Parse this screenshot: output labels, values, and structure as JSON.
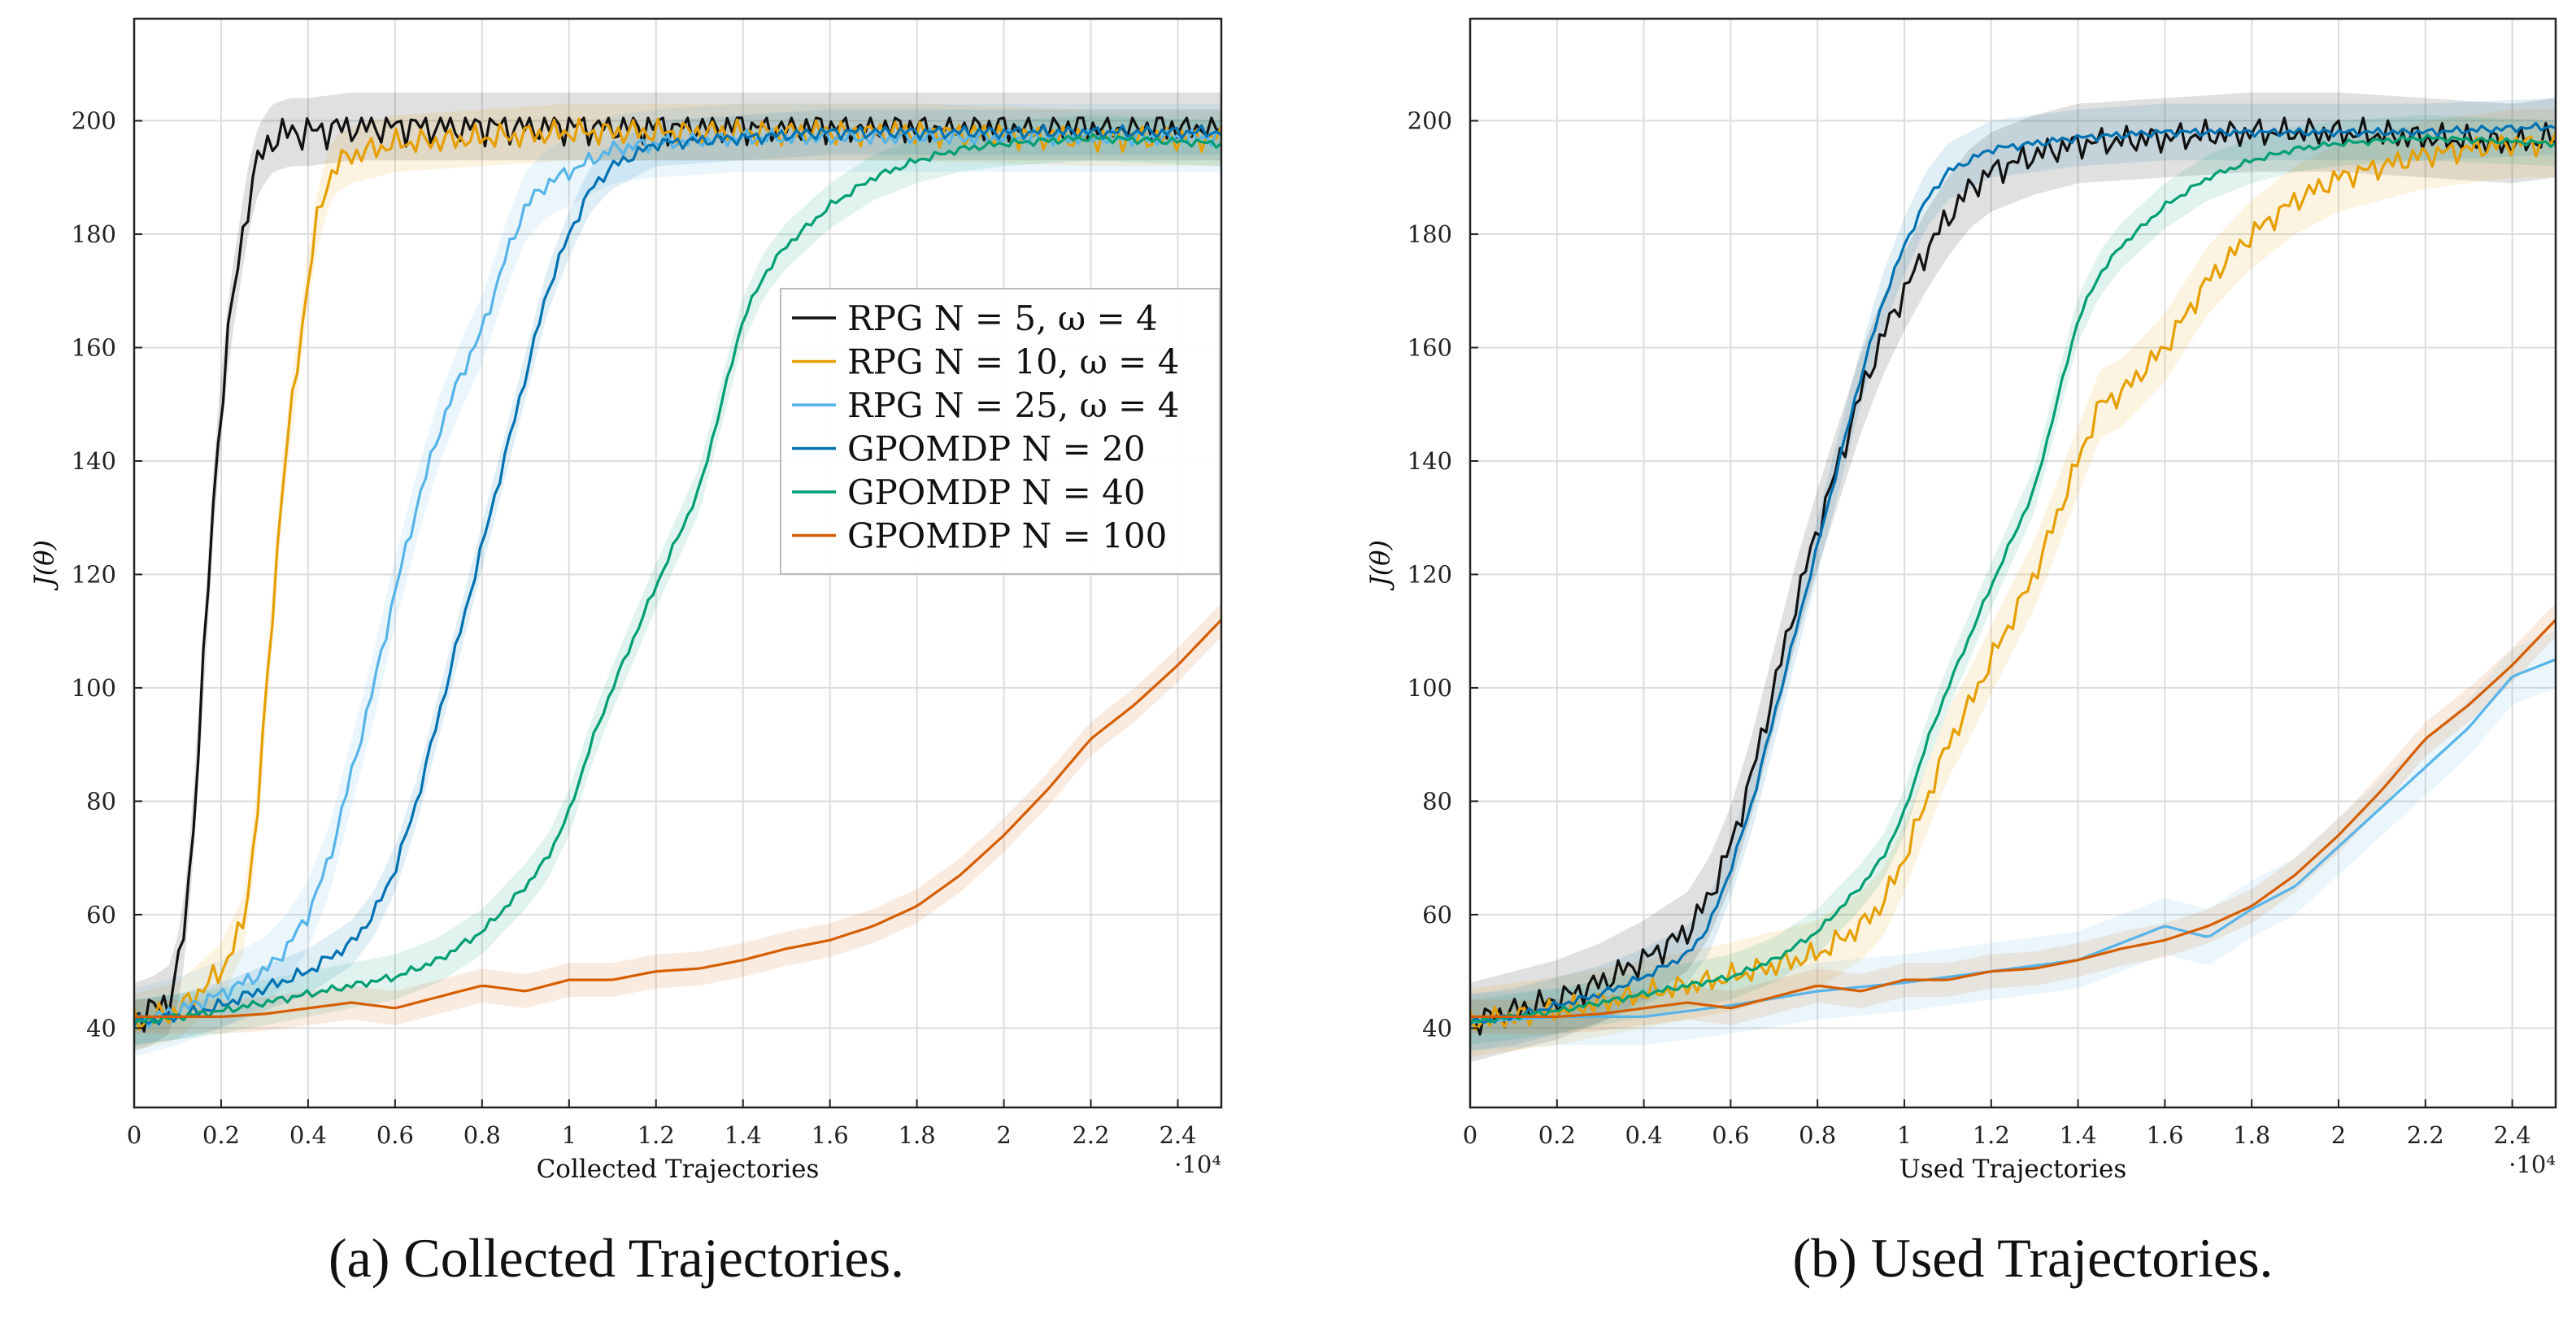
{
  "captions": {
    "a": "(a) Collected Trajectories.",
    "b": "(b) Used Trajectories."
  },
  "colors": {
    "rpg5": "#111111",
    "rpg10": "#e69f00",
    "rpg25": "#56b4e9",
    "gpomdp20": "#0072b2",
    "gpomdp40": "#009e73",
    "gpomdp100": "#d55e00",
    "grid": "#dddddd"
  },
  "chart_data": [
    {
      "type": "line",
      "xlabel": "Collected Trajectories",
      "ylabel": "J(θ)",
      "x_multiplier": "·10⁴",
      "xlim": [
        0,
        2.5
      ],
      "ylim": [
        26,
        218
      ],
      "xticks": [
        0,
        0.2,
        0.4,
        0.6,
        0.8,
        1,
        1.2,
        1.4,
        1.6,
        1.8,
        2,
        2.2,
        2.4
      ],
      "yticks": [
        40,
        60,
        80,
        100,
        120,
        140,
        160,
        180,
        200
      ],
      "grid": true,
      "legend": "center-right",
      "series": [
        {
          "key": "rpg5",
          "name": "RPG N = 5, ω = 4",
          "color": "#111111",
          "noise": 2.2,
          "band": 6,
          "x": [
            0,
            0.04,
            0.08,
            0.1,
            0.12,
            0.14,
            0.16,
            0.18,
            0.2,
            0.22,
            0.24,
            0.26,
            0.28,
            0.3,
            0.32,
            0.36,
            0.4,
            0.5,
            0.6,
            0.8,
            1.0,
            1.2,
            1.4,
            1.6,
            1.8,
            2.0,
            2.2,
            2.4,
            2.5
          ],
          "y": [
            42,
            43,
            45,
            50,
            60,
            80,
            105,
            130,
            150,
            165,
            175,
            185,
            192,
            195,
            197,
            198,
            198,
            199,
            199,
            199,
            199,
            199,
            199,
            199,
            199,
            199,
            199,
            199,
            199
          ]
        },
        {
          "key": "rpg10",
          "name": "RPG N = 10, ω = 4",
          "color": "#e69f00",
          "noise": 1.6,
          "band": 5,
          "x": [
            0,
            0.1,
            0.2,
            0.25,
            0.28,
            0.3,
            0.32,
            0.34,
            0.36,
            0.38,
            0.4,
            0.42,
            0.44,
            0.46,
            0.5,
            0.55,
            0.6,
            0.8,
            1.0,
            1.4,
            1.8,
            2.2,
            2.5
          ],
          "y": [
            41,
            43,
            50,
            58,
            75,
            95,
            115,
            135,
            148,
            160,
            172,
            182,
            188,
            192,
            194,
            195,
            196,
            197,
            198,
            198,
            198,
            197,
            197
          ]
        },
        {
          "key": "rpg25",
          "name": "RPG N = 25, ω = 4",
          "color": "#56b4e9",
          "noise": 1.0,
          "band": 6,
          "x": [
            0,
            0.1,
            0.2,
            0.3,
            0.35,
            0.4,
            0.45,
            0.5,
            0.55,
            0.6,
            0.65,
            0.7,
            0.75,
            0.8,
            0.85,
            0.9,
            0.95,
            1.0,
            1.05,
            1.1,
            1.2,
            1.4,
            1.6,
            1.8,
            2.0,
            2.2,
            2.5
          ],
          "y": [
            41,
            43,
            46,
            50,
            54,
            60,
            70,
            85,
            100,
            117,
            132,
            145,
            155,
            163,
            175,
            185,
            189,
            191,
            193,
            195,
            196,
            197,
            197,
            197,
            197,
            197,
            197
          ]
        },
        {
          "key": "gpomdp20",
          "name": "GPOMDP N = 20",
          "color": "#0072b2",
          "noise": 0.8,
          "band": 4,
          "x": [
            0,
            0.1,
            0.2,
            0.3,
            0.4,
            0.5,
            0.55,
            0.6,
            0.65,
            0.7,
            0.75,
            0.8,
            0.85,
            0.9,
            0.95,
            1.0,
            1.05,
            1.1,
            1.15,
            1.2,
            1.4,
            1.6,
            1.8,
            2.0,
            2.2,
            2.5
          ],
          "y": [
            41,
            42,
            44,
            47,
            50,
            55,
            60,
            68,
            80,
            95,
            110,
            125,
            140,
            155,
            170,
            180,
            188,
            192,
            194,
            196,
            197,
            198,
            198,
            198,
            198,
            198
          ]
        },
        {
          "key": "gpomdp40",
          "name": "GPOMDP N = 40",
          "color": "#009e73",
          "noise": 0.5,
          "band": 4,
          "x": [
            0,
            0.2,
            0.4,
            0.6,
            0.7,
            0.8,
            0.9,
            0.95,
            1.0,
            1.05,
            1.1,
            1.2,
            1.3,
            1.35,
            1.4,
            1.45,
            1.5,
            1.6,
            1.7,
            1.8,
            1.9,
            2.0,
            2.2,
            2.5
          ],
          "y": [
            41,
            43,
            46,
            49,
            52,
            57,
            65,
            70,
            78,
            90,
            100,
            118,
            135,
            150,
            165,
            173,
            178,
            185,
            190,
            193,
            195,
            196,
            197,
            196
          ]
        },
        {
          "key": "gpomdp100",
          "name": "GPOMDP N = 100",
          "color": "#d55e00",
          "noise": 0.0,
          "band": 3,
          "x": [
            0,
            0.1,
            0.2,
            0.3,
            0.4,
            0.5,
            0.6,
            0.7,
            0.8,
            0.9,
            1.0,
            1.1,
            1.2,
            1.3,
            1.4,
            1.5,
            1.6,
            1.7,
            1.8,
            1.9,
            2.0,
            2.1,
            2.2,
            2.3,
            2.4,
            2.5
          ],
          "y": [
            42,
            42,
            42,
            42.5,
            43.5,
            44.5,
            43.5,
            45.5,
            47.5,
            46.5,
            48.5,
            48.5,
            50,
            50.5,
            52,
            54,
            55.5,
            58,
            61.5,
            67,
            74,
            82,
            91,
            97,
            104,
            112
          ]
        }
      ]
    },
    {
      "type": "line",
      "xlabel": "Used Trajectories",
      "ylabel": "J(θ)",
      "x_multiplier": "·10⁴",
      "xlim": [
        0,
        2.5
      ],
      "ylim": [
        26,
        218
      ],
      "xticks": [
        0,
        0.2,
        0.4,
        0.6,
        0.8,
        1,
        1.2,
        1.4,
        1.6,
        1.8,
        2,
        2.2,
        2.4
      ],
      "yticks": [
        40,
        60,
        80,
        100,
        120,
        140,
        160,
        180,
        200
      ],
      "grid": true,
      "legend": "none",
      "series": [
        {
          "key": "rpg5",
          "name": "",
          "color": "#111111",
          "noise": 1.8,
          "band": 7,
          "x": [
            0,
            0.1,
            0.2,
            0.3,
            0.4,
            0.5,
            0.55,
            0.6,
            0.65,
            0.7,
            0.75,
            0.8,
            0.85,
            0.9,
            0.95,
            1.0,
            1.05,
            1.1,
            1.15,
            1.2,
            1.3,
            1.4,
            1.6,
            1.8,
            2.0,
            2.2,
            2.4,
            2.5
          ],
          "y": [
            41,
            43,
            45,
            48,
            52,
            57,
            63,
            72,
            85,
            100,
            115,
            128,
            140,
            152,
            162,
            170,
            177,
            183,
            188,
            191,
            194,
            196,
            197,
            198,
            198,
            197,
            196,
            197
          ]
        },
        {
          "key": "rpg10",
          "name": "",
          "color": "#e69f00",
          "noise": 1.5,
          "band": 6,
          "x": [
            0,
            0.2,
            0.4,
            0.6,
            0.7,
            0.8,
            0.9,
            0.95,
            1.0,
            1.05,
            1.1,
            1.15,
            1.2,
            1.3,
            1.4,
            1.45,
            1.5,
            1.6,
            1.7,
            1.8,
            1.9,
            2.0,
            2.1,
            2.2,
            2.3,
            2.4,
            2.5
          ],
          "y": [
            41,
            43,
            46,
            49,
            51,
            53,
            58,
            62,
            70,
            80,
            90,
            97,
            105,
            120,
            140,
            150,
            152,
            160,
            172,
            180,
            186,
            190,
            192,
            194,
            195,
            196,
            196
          ]
        },
        {
          "key": "rpg25",
          "name": "",
          "color": "#56b4e9",
          "noise": 0.0,
          "band": 5,
          "x": [
            0,
            0.2,
            0.4,
            0.6,
            0.8,
            1.0,
            1.2,
            1.4,
            1.6,
            1.7,
            1.8,
            1.9,
            2.0,
            2.1,
            2.2,
            2.3,
            2.4,
            2.5
          ],
          "y": [
            41,
            42,
            42,
            44,
            46.5,
            48,
            50,
            52,
            58,
            56,
            61,
            65,
            72,
            79,
            86,
            93,
            102,
            105
          ]
        },
        {
          "key": "gpomdp20",
          "name": "",
          "color": "#0072b2",
          "noise": 0.5,
          "band": 5,
          "x": [
            0,
            0.1,
            0.2,
            0.3,
            0.4,
            0.5,
            0.55,
            0.6,
            0.65,
            0.7,
            0.75,
            0.8,
            0.85,
            0.9,
            0.95,
            1.0,
            1.05,
            1.1,
            1.2,
            1.4,
            1.6,
            1.8,
            2.0,
            2.2,
            2.5
          ],
          "y": [
            41,
            42,
            44,
            46,
            49,
            53,
            58,
            68,
            80,
            95,
            110,
            125,
            140,
            155,
            168,
            178,
            186,
            191,
            195,
            197,
            198,
            198,
            198,
            198,
            199
          ]
        },
        {
          "key": "gpomdp40",
          "name": "",
          "color": "#009e73",
          "noise": 0.4,
          "band": 4,
          "x": [
            0,
            0.2,
            0.4,
            0.6,
            0.7,
            0.8,
            0.9,
            0.95,
            1.0,
            1.05,
            1.1,
            1.2,
            1.3,
            1.35,
            1.4,
            1.45,
            1.5,
            1.6,
            1.7,
            1.8,
            1.9,
            2.0,
            2.2,
            2.5
          ],
          "y": [
            41,
            43,
            46,
            49,
            52,
            57,
            65,
            70,
            78,
            90,
            100,
            118,
            135,
            150,
            165,
            173,
            178,
            185,
            190,
            193,
            195,
            196,
            197,
            196
          ]
        },
        {
          "key": "gpomdp100",
          "name": "",
          "color": "#d55e00",
          "noise": 0.0,
          "band": 3,
          "x": [
            0,
            0.1,
            0.2,
            0.3,
            0.4,
            0.5,
            0.6,
            0.7,
            0.8,
            0.9,
            1.0,
            1.1,
            1.2,
            1.3,
            1.4,
            1.5,
            1.6,
            1.7,
            1.8,
            1.9,
            2.0,
            2.1,
            2.2,
            2.3,
            2.4,
            2.5
          ],
          "y": [
            42,
            42,
            42,
            42.5,
            43.5,
            44.5,
            43.5,
            45.5,
            47.5,
            46.5,
            48.5,
            48.5,
            50,
            50.5,
            52,
            54,
            55.5,
            58,
            61.5,
            67,
            74,
            82,
            91,
            97,
            104,
            112
          ]
        }
      ]
    }
  ]
}
